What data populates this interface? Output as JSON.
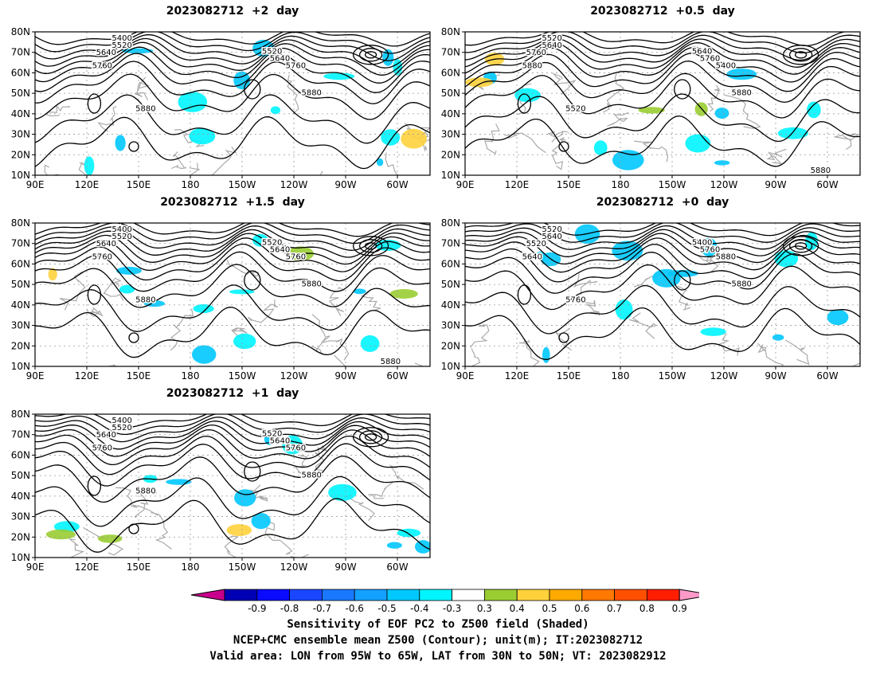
{
  "panels": [
    {
      "title": "2023082712  +2  day",
      "contour_labels": [
        "5400",
        "5520",
        "5640",
        "5760",
        "5880",
        "5520",
        "5640",
        "5760",
        "5880"
      ]
    },
    {
      "title": "2023082712  +0.5  day",
      "contour_labels": [
        "5520",
        "5640",
        "5760",
        "5880",
        "5520",
        "5640",
        "5760",
        "5400",
        "5880",
        "5880"
      ]
    },
    {
      "title": "2023082712  +1.5  day",
      "contour_labels": [
        "5400",
        "5520",
        "5640",
        "5760",
        "5880",
        "5520",
        "5640",
        "5760",
        "5880",
        "5880"
      ]
    },
    {
      "title": "2023082712  +0  day",
      "contour_labels": [
        "5520",
        "5640",
        "5520",
        "5640",
        "5760",
        "5400",
        "5760",
        "5880",
        "5880"
      ]
    },
    {
      "title": "2023082712  +1  day",
      "contour_labels": [
        "5400",
        "5520",
        "5640",
        "5760",
        "5880",
        "5520",
        "5640",
        "5760",
        "5880"
      ]
    }
  ],
  "axes": {
    "lat_labels": [
      "80N",
      "70N",
      "60N",
      "50N",
      "40N",
      "30N",
      "20N",
      "10N"
    ],
    "lon_labels": [
      "90E",
      "120E",
      "150E",
      "180",
      "150W",
      "120W",
      "90W",
      "60W"
    ]
  },
  "colorbar": {
    "labels": [
      "-0.9",
      "-0.8",
      "-0.7",
      "-0.6",
      "-0.5",
      "-0.4",
      "-0.3",
      "0.3",
      "0.4",
      "0.5",
      "0.6",
      "0.7",
      "0.8",
      "0.9"
    ],
    "colors": [
      "#c8008c",
      "#0000b4",
      "#0a0aff",
      "#1a46ff",
      "#1a78ff",
      "#14a0ff",
      "#00c8ff",
      "#00f5ff",
      "#ffffff",
      "#9acd32",
      "#ffd23c",
      "#ffaa00",
      "#ff7800",
      "#ff5000",
      "#ff1e00",
      "#ff9ac8"
    ]
  },
  "footer": [
    "Sensitivity of EOF PC2 to Z500 field (Shaded)",
    "NCEP+CMC ensemble mean Z500 (Contour); unit(m); IT:2023082712",
    "Valid area: LON from 95W to 65W, LAT from 30N to 50N; VT: 2023082912"
  ]
}
